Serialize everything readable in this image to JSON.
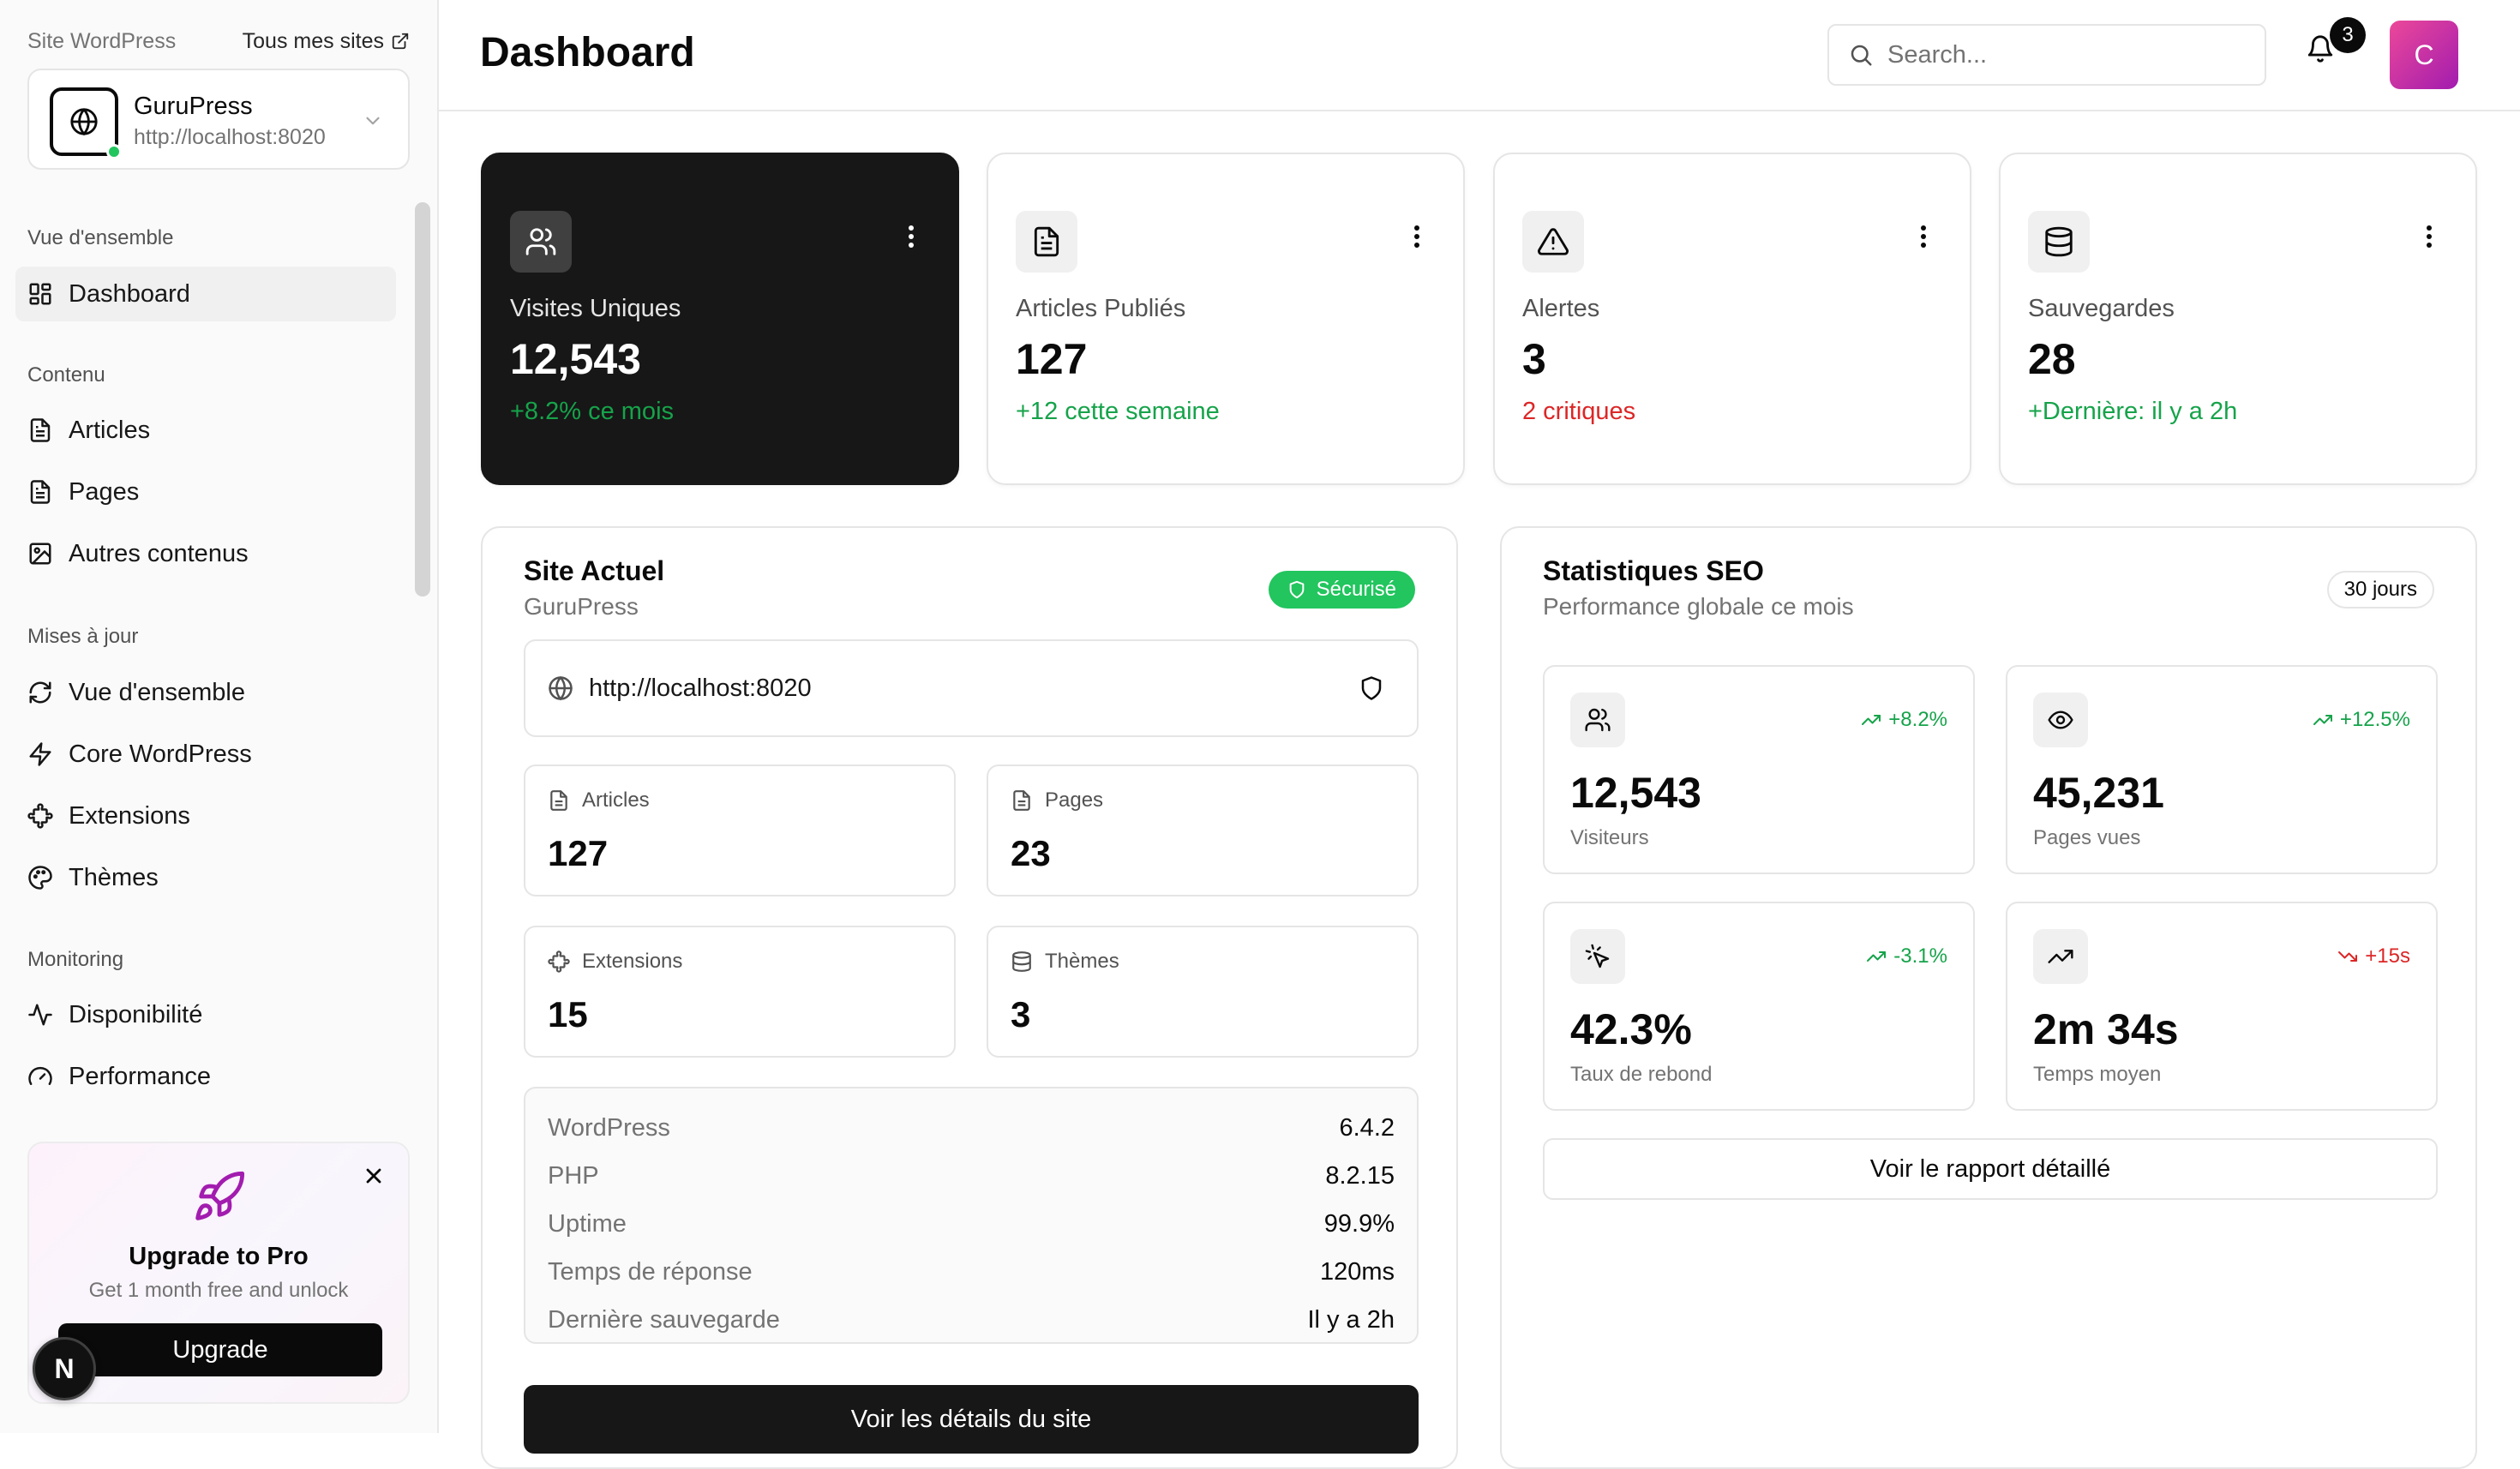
{
  "sidebar": {
    "site_label": "Site WordPress",
    "all_sites": "Tous mes sites",
    "site": {
      "name": "GuruPress",
      "url": "http://localhost:8020"
    },
    "groups": [
      {
        "title": "Vue d'ensemble",
        "items": [
          {
            "label": "Dashboard",
            "icon": "dashboard-icon"
          }
        ]
      },
      {
        "title": "Contenu",
        "items": [
          {
            "label": "Articles",
            "icon": "file-icon"
          },
          {
            "label": "Pages",
            "icon": "file-icon"
          },
          {
            "label": "Autres contenus",
            "icon": "image-icon"
          }
        ]
      },
      {
        "title": "Mises à jour",
        "items": [
          {
            "label": "Vue d'ensemble",
            "icon": "refresh-icon"
          },
          {
            "label": "Core WordPress",
            "icon": "bolt-icon"
          },
          {
            "label": "Extensions",
            "icon": "puzzle-icon"
          },
          {
            "label": "Thèmes",
            "icon": "palette-icon"
          }
        ]
      },
      {
        "title": "Monitoring",
        "items": [
          {
            "label": "Disponibilité",
            "icon": "activity-icon"
          },
          {
            "label": "Performance",
            "icon": "gauge-icon"
          }
        ]
      }
    ],
    "promo": {
      "title": "Upgrade to Pro",
      "subtitle": "Get 1 month free and unlock",
      "button": "Upgrade"
    },
    "dev_badge": "N"
  },
  "header": {
    "title": "Dashboard",
    "search_placeholder": "Search...",
    "notifications": "3",
    "avatar": "C"
  },
  "stats": [
    {
      "label": "Visites Uniques",
      "value": "12,543",
      "trend": "+8.2% ce mois",
      "trend_color": "green",
      "icon": "users-icon"
    },
    {
      "label": "Articles Publiés",
      "value": "127",
      "trend": "+12 cette semaine",
      "trend_color": "green",
      "icon": "file-icon"
    },
    {
      "label": "Alertes",
      "value": "3",
      "trend": "2 critiques",
      "trend_color": "red",
      "icon": "alert-icon"
    },
    {
      "label": "Sauvegardes",
      "value": "28",
      "trend": "+Dernière: il y a 2h",
      "trend_color": "green",
      "icon": "database-icon"
    }
  ],
  "site_panel": {
    "title": "Site Actuel",
    "subtitle": "GuruPress",
    "badge": "Sécurisé",
    "url": "http://localhost:8020",
    "minis": [
      {
        "label": "Articles",
        "value": "127",
        "icon": "file-icon"
      },
      {
        "label": "Pages",
        "value": "23",
        "icon": "file-icon"
      },
      {
        "label": "Extensions",
        "value": "15",
        "icon": "puzzle-icon"
      },
      {
        "label": "Thèmes",
        "value": "3",
        "icon": "database-icon"
      }
    ],
    "info": [
      {
        "key": "WordPress",
        "value": "6.4.2"
      },
      {
        "key": "PHP",
        "value": "8.2.15"
      },
      {
        "key": "Uptime",
        "value": "99.9%"
      },
      {
        "key": "Temps de réponse",
        "value": "120ms"
      },
      {
        "key": "Dernière sauvegarde",
        "value": "Il y a 2h"
      }
    ],
    "button": "Voir les détails du site"
  },
  "seo_panel": {
    "title": "Statistiques SEO",
    "subtitle": "Performance globale ce mois",
    "badge": "30 jours",
    "cards": [
      {
        "label": "Visiteurs",
        "value": "12,543",
        "trend": "+8.2%",
        "trend_color": "green",
        "icon": "users-icon"
      },
      {
        "label": "Pages vues",
        "value": "45,231",
        "trend": "+12.5%",
        "trend_color": "green",
        "icon": "eye-icon"
      },
      {
        "label": "Taux de rebond",
        "value": "42.3%",
        "trend": "-3.1%",
        "trend_color": "green",
        "icon": "pointer-icon"
      },
      {
        "label": "Temps moyen",
        "value": "2m 34s",
        "trend": "+15s",
        "trend_color": "red",
        "icon": "trending-icon"
      }
    ],
    "button": "Voir le rapport détaillé"
  },
  "colors": {
    "accent_green": "#16a34a",
    "alert_red": "#dc2626",
    "dark_card": "#171717",
    "avatar": "#c026d3"
  }
}
